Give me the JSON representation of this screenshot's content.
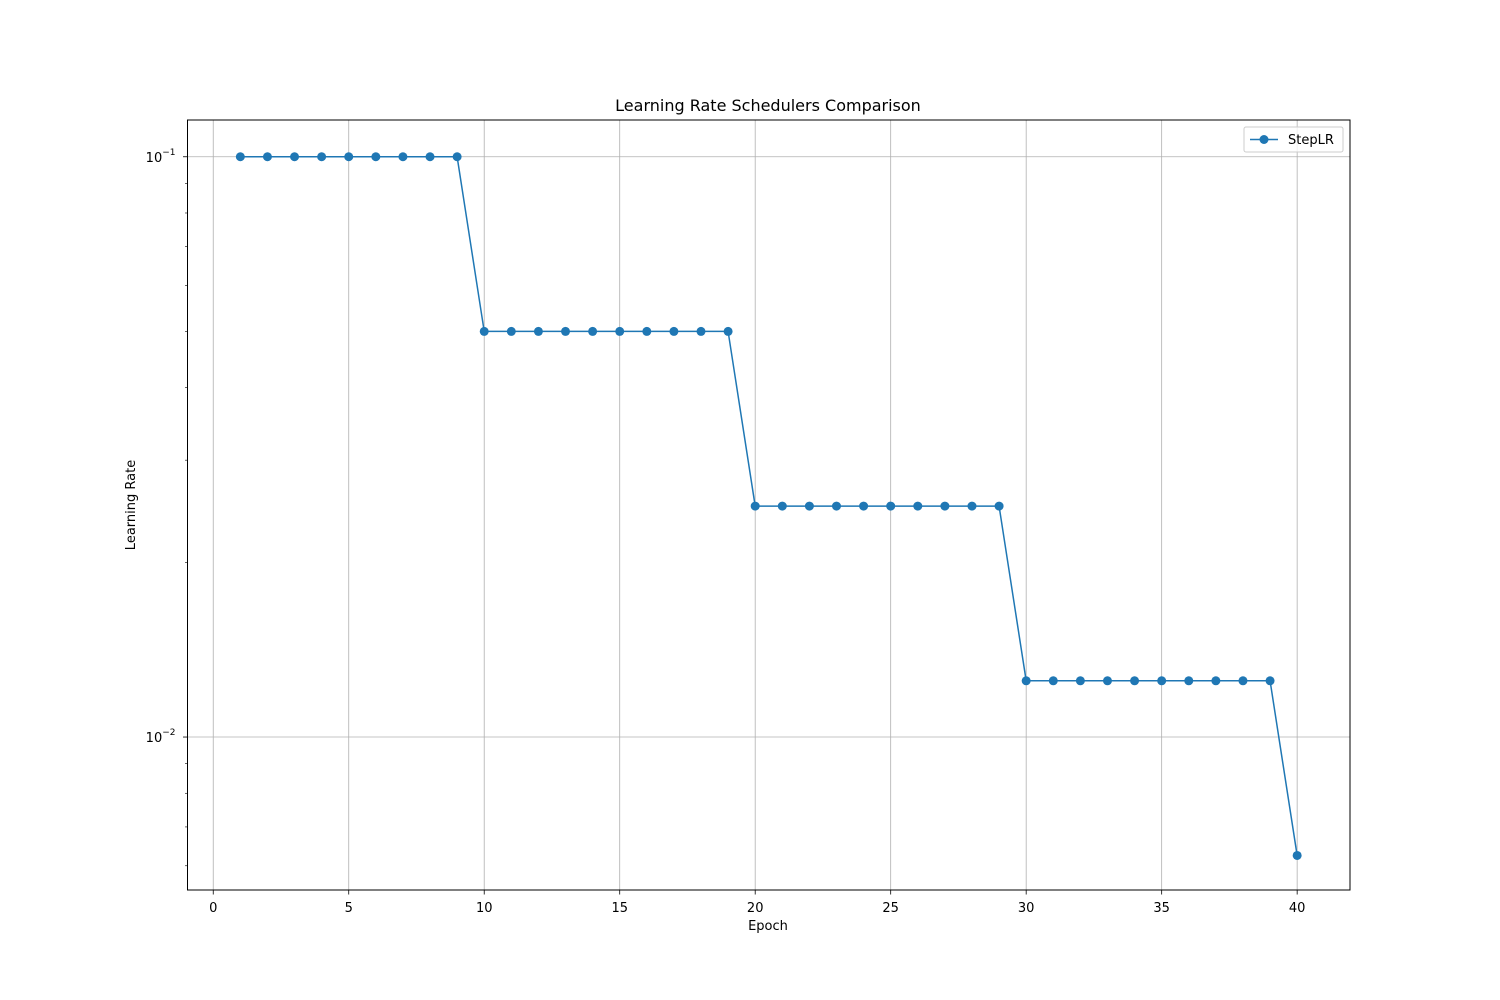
{
  "chart_data": {
    "type": "line",
    "title": "Learning Rate Schedulers Comparison",
    "xlabel": "Epoch",
    "ylabel": "Learning Rate",
    "xscale": "linear",
    "yscale": "log",
    "xlim": [
      -0.95,
      41.95
    ],
    "ylim": [
      0.00545,
      0.1157
    ],
    "x_ticks": [
      0,
      5,
      10,
      15,
      20,
      25,
      30,
      35,
      40
    ],
    "x_tick_labels": [
      "0",
      "5",
      "10",
      "15",
      "20",
      "25",
      "30",
      "35",
      "40"
    ],
    "y_ticks": [
      {
        "value": 0.1,
        "base": "10",
        "exponent": "−1"
      },
      {
        "value": 0.01,
        "base": "10",
        "exponent": "−2"
      }
    ],
    "grid": true,
    "legend": {
      "position": "top-right"
    },
    "series": [
      {
        "name": "StepLR",
        "color": "#1f77b4",
        "marker": "circle",
        "x": [
          1,
          2,
          3,
          4,
          5,
          6,
          7,
          8,
          9,
          10,
          11,
          12,
          13,
          14,
          15,
          16,
          17,
          18,
          19,
          20,
          21,
          22,
          23,
          24,
          25,
          26,
          27,
          28,
          29,
          30,
          31,
          32,
          33,
          34,
          35,
          36,
          37,
          38,
          39,
          40
        ],
        "values": [
          0.1,
          0.1,
          0.1,
          0.1,
          0.1,
          0.1,
          0.1,
          0.1,
          0.1,
          0.05,
          0.05,
          0.05,
          0.05,
          0.05,
          0.05,
          0.05,
          0.05,
          0.05,
          0.05,
          0.025,
          0.025,
          0.025,
          0.025,
          0.025,
          0.025,
          0.025,
          0.025,
          0.025,
          0.025,
          0.0125,
          0.0125,
          0.0125,
          0.0125,
          0.0125,
          0.0125,
          0.0125,
          0.0125,
          0.0125,
          0.0125,
          0.00625
        ]
      }
    ]
  }
}
